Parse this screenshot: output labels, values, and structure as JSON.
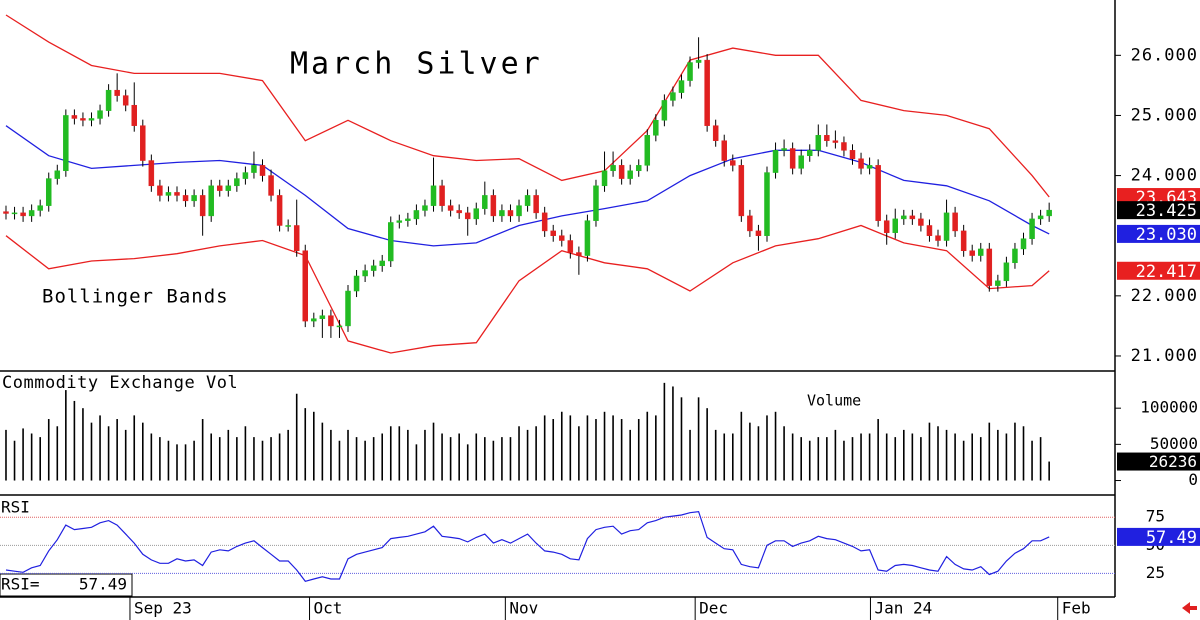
{
  "chart_data": [
    {
      "type": "candlestick",
      "title": "March Silver",
      "annotation": "Bollinger Bands",
      "xlim": [
        -0.7,
        129.7
      ],
      "xticks": [
        {
          "value": 14.5,
          "label": "Sep 23"
        },
        {
          "value": 35.5,
          "label": "Oct"
        },
        {
          "value": 58.4,
          "label": "Nov"
        },
        {
          "value": 80.6,
          "label": "Dec"
        },
        {
          "value": 101.1,
          "label": "Jan 24"
        },
        {
          "value": 123.0,
          "label": "Feb"
        }
      ],
      "ylim": [
        20.75,
        26.92
      ],
      "yticks": [
        {
          "value": 26,
          "label": "26.000"
        },
        {
          "value": 25,
          "label": "25.000"
        },
        {
          "value": 24,
          "label": "24.000"
        },
        {
          "value": 22,
          "label": "22.000"
        },
        {
          "value": 21,
          "label": "21.000"
        }
      ],
      "up_color": "#22bb22",
      "down_color": "#e02020",
      "close_badge_color": "#000000",
      "open": [
        23.4,
        23.37,
        23.38,
        23.33,
        23.42,
        23.5,
        23.95,
        24.08,
        25.0,
        24.95,
        24.92,
        24.95,
        25.08,
        25.42,
        25.33,
        25.17,
        24.83,
        24.25,
        23.83,
        23.67,
        23.72,
        23.67,
        23.58,
        23.67,
        23.33,
        23.83,
        23.75,
        23.83,
        23.95,
        24.05,
        24.17,
        24.0,
        23.67,
        23.17,
        23.17,
        22.75,
        21.58,
        21.62,
        21.67,
        21.5,
        21.5,
        22.08,
        22.33,
        22.42,
        22.5,
        22.58,
        23.22,
        23.25,
        23.28,
        23.42,
        23.5,
        23.83,
        23.5,
        23.42,
        23.38,
        23.28,
        23.45,
        23.67,
        23.33,
        23.42,
        23.33,
        23.5,
        23.67,
        23.38,
        23.08,
        23.0,
        22.92,
        22.72,
        22.67,
        23.25,
        23.83,
        24.08,
        24.17,
        23.95,
        24.08,
        24.17,
        24.67,
        24.92,
        25.25,
        25.38,
        25.58,
        25.88,
        25.92,
        24.83,
        24.58,
        24.25,
        24.17,
        23.33,
        23.08,
        23.0,
        24.05,
        24.42,
        24.45,
        24.12,
        24.33,
        24.42,
        24.67,
        24.58,
        24.55,
        24.42,
        24.28,
        24.12,
        24.17,
        23.25,
        23.05,
        23.28,
        23.33,
        23.28,
        23.17,
        23.0,
        22.92,
        23.38,
        23.08,
        22.75,
        22.67,
        22.78,
        22.17,
        22.25,
        22.55,
        22.78,
        22.95,
        23.28,
        23.33
      ],
      "high": [
        23.5,
        23.48,
        23.48,
        23.52,
        23.6,
        24.05,
        24.18,
        25.1,
        25.1,
        25.05,
        25.05,
        25.18,
        25.52,
        25.7,
        25.43,
        25.55,
        24.93,
        24.35,
        23.93,
        23.82,
        23.82,
        23.77,
        23.77,
        23.77,
        23.93,
        23.93,
        23.93,
        24.05,
        24.15,
        24.4,
        24.27,
        24.1,
        23.77,
        23.27,
        23.6,
        22.85,
        21.72,
        21.77,
        21.77,
        21.6,
        22.18,
        22.43,
        22.52,
        22.6,
        22.68,
        23.32,
        23.35,
        23.38,
        23.52,
        23.6,
        24.3,
        23.93,
        23.6,
        23.52,
        23.48,
        23.55,
        23.9,
        23.77,
        23.52,
        23.52,
        23.6,
        23.77,
        23.77,
        23.48,
        23.18,
        23.1,
        23.02,
        22.82,
        23.35,
        23.93,
        24.4,
        24.4,
        24.27,
        24.18,
        24.27,
        24.77,
        25.02,
        25.35,
        25.48,
        25.68,
        25.98,
        26.3,
        26.02,
        24.93,
        24.68,
        24.35,
        24.27,
        23.43,
        23.18,
        24.15,
        24.55,
        24.6,
        24.55,
        24.43,
        24.52,
        24.85,
        24.85,
        24.75,
        24.65,
        24.52,
        24.38,
        24.3,
        24.27,
        23.35,
        23.45,
        23.43,
        23.43,
        23.38,
        23.27,
        23.1,
        23.6,
        23.48,
        23.18,
        22.85,
        22.88,
        22.88,
        22.35,
        22.65,
        22.88,
        23.05,
        23.38,
        23.43,
        23.55
      ],
      "low": [
        23.27,
        23.27,
        23.23,
        23.23,
        23.32,
        23.4,
        23.85,
        23.98,
        24.85,
        24.82,
        24.82,
        24.85,
        24.98,
        25.23,
        25.07,
        24.73,
        24.15,
        23.73,
        23.57,
        23.57,
        23.57,
        23.48,
        23.48,
        23.0,
        23.23,
        23.65,
        23.65,
        23.73,
        23.85,
        23.95,
        23.9,
        23.57,
        23.07,
        23.07,
        22.65,
        21.48,
        21.48,
        21.3,
        21.3,
        21.3,
        21.4,
        21.98,
        22.23,
        22.32,
        22.4,
        22.48,
        23.12,
        23.15,
        23.18,
        23.32,
        23.4,
        23.4,
        23.32,
        23.28,
        23.0,
        23.18,
        23.35,
        23.23,
        23.23,
        23.23,
        23.23,
        23.4,
        23.28,
        22.98,
        22.9,
        22.82,
        22.62,
        22.35,
        22.57,
        23.15,
        23.73,
        23.98,
        23.85,
        23.85,
        23.98,
        24.07,
        24.57,
        24.82,
        25.15,
        25.28,
        25.48,
        25.78,
        24.73,
        24.48,
        24.15,
        24.07,
        23.23,
        22.98,
        22.75,
        22.9,
        23.95,
        24.32,
        24.02,
        24.02,
        24.23,
        24.32,
        24.48,
        24.45,
        24.32,
        24.18,
        24.02,
        24.02,
        23.15,
        22.85,
        22.95,
        23.18,
        23.18,
        23.07,
        22.9,
        22.82,
        22.82,
        22.98,
        22.65,
        22.57,
        22.57,
        22.07,
        22.07,
        22.15,
        22.45,
        22.68,
        22.85,
        23.18,
        23.23
      ],
      "close": [
        23.37,
        23.38,
        23.33,
        23.42,
        23.5,
        23.95,
        24.08,
        25.0,
        24.95,
        24.92,
        24.95,
        25.08,
        25.42,
        25.33,
        25.17,
        24.83,
        24.25,
        23.83,
        23.67,
        23.72,
        23.67,
        23.58,
        23.67,
        23.33,
        23.83,
        23.75,
        23.83,
        23.95,
        24.05,
        24.17,
        24.0,
        23.67,
        23.17,
        23.17,
        22.75,
        21.58,
        21.62,
        21.67,
        21.5,
        21.5,
        22.08,
        22.33,
        22.42,
        22.5,
        22.58,
        23.22,
        23.25,
        23.28,
        23.42,
        23.5,
        23.83,
        23.5,
        23.42,
        23.38,
        23.28,
        23.45,
        23.67,
        23.33,
        23.42,
        23.33,
        23.5,
        23.67,
        23.38,
        23.08,
        23.0,
        22.92,
        22.72,
        22.67,
        23.25,
        23.83,
        24.08,
        24.17,
        23.95,
        24.08,
        24.17,
        24.67,
        24.92,
        25.25,
        25.38,
        25.58,
        25.88,
        25.92,
        24.83,
        24.58,
        24.25,
        24.17,
        23.33,
        23.08,
        23.0,
        24.05,
        24.42,
        24.45,
        24.12,
        24.33,
        24.42,
        24.67,
        24.58,
        24.55,
        24.42,
        24.28,
        24.12,
        24.17,
        23.25,
        23.05,
        23.28,
        23.33,
        23.28,
        23.17,
        23.0,
        22.92,
        23.38,
        23.08,
        22.75,
        22.67,
        22.78,
        22.17,
        22.25,
        22.55,
        22.78,
        22.95,
        23.28,
        23.33,
        23.425
      ],
      "bands_x": [
        0,
        5,
        10,
        15,
        20,
        25,
        30,
        35,
        40,
        45,
        50,
        55,
        60,
        65,
        70,
        75,
        80,
        85,
        90,
        95,
        100,
        105,
        110,
        115,
        120,
        122
      ],
      "bands": [
        {
          "color": "#e82020",
          "last_label": "23.643",
          "values": [
            26.67,
            26.22,
            25.83,
            25.7,
            25.7,
            25.7,
            25.58,
            24.58,
            24.92,
            24.58,
            24.33,
            24.25,
            24.28,
            23.92,
            24.08,
            24.75,
            25.92,
            26.12,
            26.0,
            26.0,
            25.25,
            25.08,
            25.0,
            24.78,
            24.0,
            23.643
          ]
        },
        {
          "color": "#2020e0",
          "last_label": "23.030",
          "values": [
            24.83,
            24.33,
            24.12,
            24.17,
            24.22,
            24.25,
            24.17,
            23.67,
            23.12,
            22.92,
            22.83,
            22.88,
            23.17,
            23.33,
            23.45,
            23.58,
            24.0,
            24.28,
            24.42,
            24.42,
            24.22,
            23.92,
            23.83,
            23.58,
            23.17,
            23.03
          ]
        },
        {
          "color": "#e82020",
          "last_label": "22.417",
          "values": [
            23.0,
            22.45,
            22.58,
            22.62,
            22.7,
            22.83,
            22.92,
            22.67,
            21.25,
            21.05,
            21.17,
            21.22,
            22.25,
            22.75,
            22.55,
            22.45,
            22.08,
            22.55,
            22.83,
            22.95,
            23.17,
            22.88,
            22.75,
            22.12,
            22.17,
            22.417
          ]
        }
      ]
    },
    {
      "type": "bar",
      "title": "Commodity Exchange Vol",
      "annotation": "Volume",
      "color": "#000000",
      "badge_color": "#000000",
      "ylim": [
        -20000,
        150000
      ],
      "yticks": [
        100000,
        50000,
        0
      ],
      "values": [
        70000,
        55000,
        72000,
        65000,
        60000,
        85000,
        75000,
        125000,
        110000,
        100000,
        80000,
        90000,
        75000,
        85000,
        70000,
        90000,
        80000,
        65000,
        60000,
        55000,
        50000,
        50000,
        55000,
        85000,
        65000,
        60000,
        70000,
        60000,
        75000,
        60000,
        55000,
        60000,
        65000,
        70000,
        120000,
        100000,
        95000,
        80000,
        70000,
        55000,
        70000,
        60000,
        55000,
        60000,
        65000,
        75000,
        75000,
        70000,
        50000,
        70000,
        80000,
        65000,
        60000,
        65000,
        50000,
        65000,
        60000,
        55000,
        60000,
        60000,
        75000,
        70000,
        75000,
        90000,
        85000,
        95000,
        90000,
        75000,
        90000,
        85000,
        95000,
        90000,
        85000,
        70000,
        85000,
        95000,
        90000,
        135000,
        130000,
        115000,
        70000,
        115000,
        100000,
        70000,
        65000,
        65000,
        95000,
        80000,
        75000,
        90000,
        95000,
        75000,
        65000,
        60000,
        55000,
        60000,
        60000,
        70000,
        55000,
        60000,
        65000,
        65000,
        85000,
        65000,
        60000,
        70000,
        65000,
        60000,
        80000,
        75000,
        70000,
        65000,
        55000,
        65000,
        60000,
        80000,
        70000,
        65000,
        80000,
        75000,
        55000,
        60000,
        26236
      ]
    },
    {
      "type": "line",
      "title": "RSI",
      "readout": "RSI=",
      "color": "#2020e0",
      "ylim": [
        4,
        93
      ],
      "yticks": [
        75,
        50,
        25
      ],
      "guide_colors": [
        "#e06060",
        "#999999",
        "#6060e0"
      ],
      "values": [
        28,
        27,
        26,
        30,
        32,
        45,
        55,
        68,
        64,
        65,
        66,
        70,
        72,
        68,
        60,
        52,
        42,
        37,
        34,
        34,
        38,
        36,
        37,
        32,
        44,
        46,
        45,
        49,
        52,
        54,
        48,
        42,
        36,
        36,
        28,
        18,
        20,
        22,
        20,
        20,
        38,
        42,
        44,
        46,
        48,
        56,
        57,
        58,
        60,
        62,
        67,
        58,
        57,
        56,
        53,
        57,
        60,
        52,
        55,
        52,
        56,
        60,
        52,
        45,
        44,
        42,
        38,
        37,
        56,
        64,
        66,
        67,
        60,
        63,
        64,
        70,
        72,
        75,
        76,
        77,
        79,
        80,
        57,
        52,
        47,
        46,
        33,
        31,
        30,
        50,
        54,
        54,
        49,
        52,
        54,
        58,
        56,
        55,
        52,
        49,
        45,
        46,
        28,
        27,
        32,
        33,
        32,
        30,
        28,
        27,
        40,
        33,
        29,
        28,
        31,
        24,
        27,
        36,
        43,
        47,
        54,
        54,
        57.49
      ]
    }
  ]
}
